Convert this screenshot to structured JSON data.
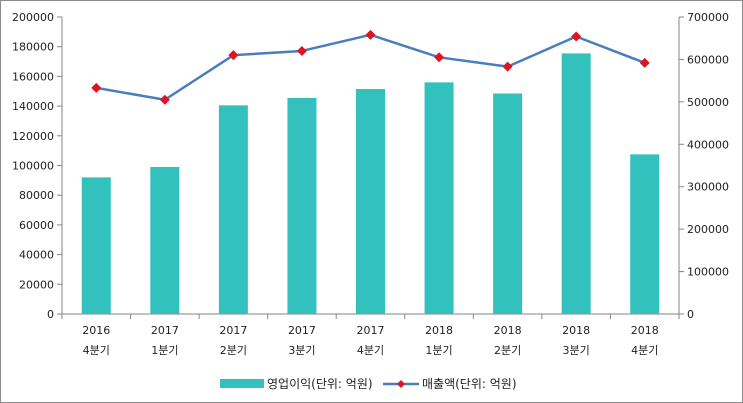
{
  "chart_data": {
    "type": "bar+line",
    "categories": [
      [
        "2016",
        "4분기"
      ],
      [
        "2017",
        "1분기"
      ],
      [
        "2017",
        "2분기"
      ],
      [
        "2017",
        "3분기"
      ],
      [
        "2017",
        "4분기"
      ],
      [
        "2018",
        "1분기"
      ],
      [
        "2018",
        "2분기"
      ],
      [
        "2018",
        "3분기"
      ],
      [
        "2018",
        "4분기"
      ]
    ],
    "series": [
      {
        "name": "영업이익(단위: 억원)",
        "type": "bar",
        "axis": "left",
        "color": "#33c1bd",
        "values": [
          92000,
          99000,
          140500,
          145500,
          151500,
          156000,
          148500,
          175500,
          107500
        ]
      },
      {
        "name": "매출액(단위: 억원)",
        "type": "line",
        "axis": "right",
        "color": "#4a7ebb",
        "marker_color": "#e0141e",
        "values": [
          533000,
          505000,
          610000,
          620000,
          658000,
          605000,
          583000,
          654000,
          592000
        ]
      }
    ],
    "y_left": {
      "min": 0,
      "max": 200000,
      "step": 20000
    },
    "y_right": {
      "min": 0,
      "max": 700000,
      "step": 100000
    },
    "grid": false,
    "legend_position": "bottom"
  }
}
